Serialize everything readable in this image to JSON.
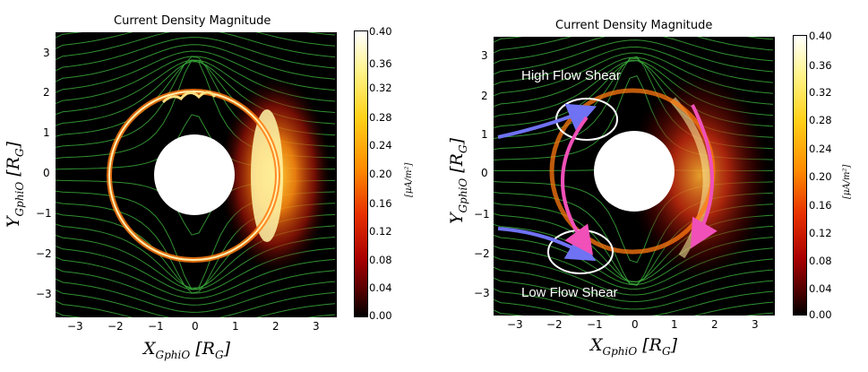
{
  "chart_data": [
    {
      "type": "heatmap",
      "title": "Current Density Magnitude",
      "xlabel": "X_GphiO [R_G]",
      "ylabel": "Y_GphiO [R_G]",
      "xlim": [
        -3.5,
        3.5
      ],
      "ylim": [
        -3.5,
        3.5
      ],
      "xticks": [
        "−3",
        "−2",
        "−1",
        "0",
        "1",
        "2",
        "3"
      ],
      "yticks": [
        "3",
        "2",
        "1",
        "0",
        "−1",
        "−2",
        "−3"
      ],
      "colorbar": {
        "label": "[μA/m²]",
        "range": [
          0.0,
          0.4
        ],
        "ticks": [
          "0.40",
          "0.36",
          "0.32",
          "0.28",
          "0.24",
          "0.20",
          "0.16",
          "0.12",
          "0.08",
          "0.04",
          "0.00"
        ]
      },
      "streamlines": "flow field (green)",
      "annotations": []
    },
    {
      "type": "heatmap",
      "title": "Current Density Magnitude",
      "xlabel": "X_GphiO [R_G]",
      "ylabel": "Y_GphiO [R_G]",
      "xlim": [
        -3.5,
        3.5
      ],
      "ylim": [
        -3.5,
        3.5
      ],
      "xticks": [
        "−3",
        "−2",
        "−1",
        "0",
        "1",
        "2",
        "3"
      ],
      "yticks": [
        "3",
        "2",
        "1",
        "0",
        "−1",
        "−2",
        "−3"
      ],
      "colorbar": {
        "label": "[μA/m²]",
        "range": [
          0.0,
          0.4
        ],
        "ticks": [
          "0.40",
          "0.36",
          "0.32",
          "0.28",
          "0.24",
          "0.20",
          "0.16",
          "0.12",
          "0.08",
          "0.04",
          "0.00"
        ]
      },
      "streamlines": "flow field (green)",
      "annotations": [
        "High Flow Shear",
        "Low Flow Shear"
      ]
    }
  ],
  "labels": {
    "x_main": "X",
    "x_sub": "GphiO",
    "x_unit": "[R",
    "x_unit_sub": "G",
    "x_close": "]",
    "y_main": "Y",
    "y_sub": "GphiO",
    "y_unit": "[R",
    "y_unit_sub": "G",
    "y_close": "]"
  },
  "colors": {
    "background": "#000000",
    "streamline": "#3aa83a",
    "arrow_blue": "#6f72f2",
    "arrow_pink": "#f050b8",
    "annotation": "#ffffff"
  }
}
